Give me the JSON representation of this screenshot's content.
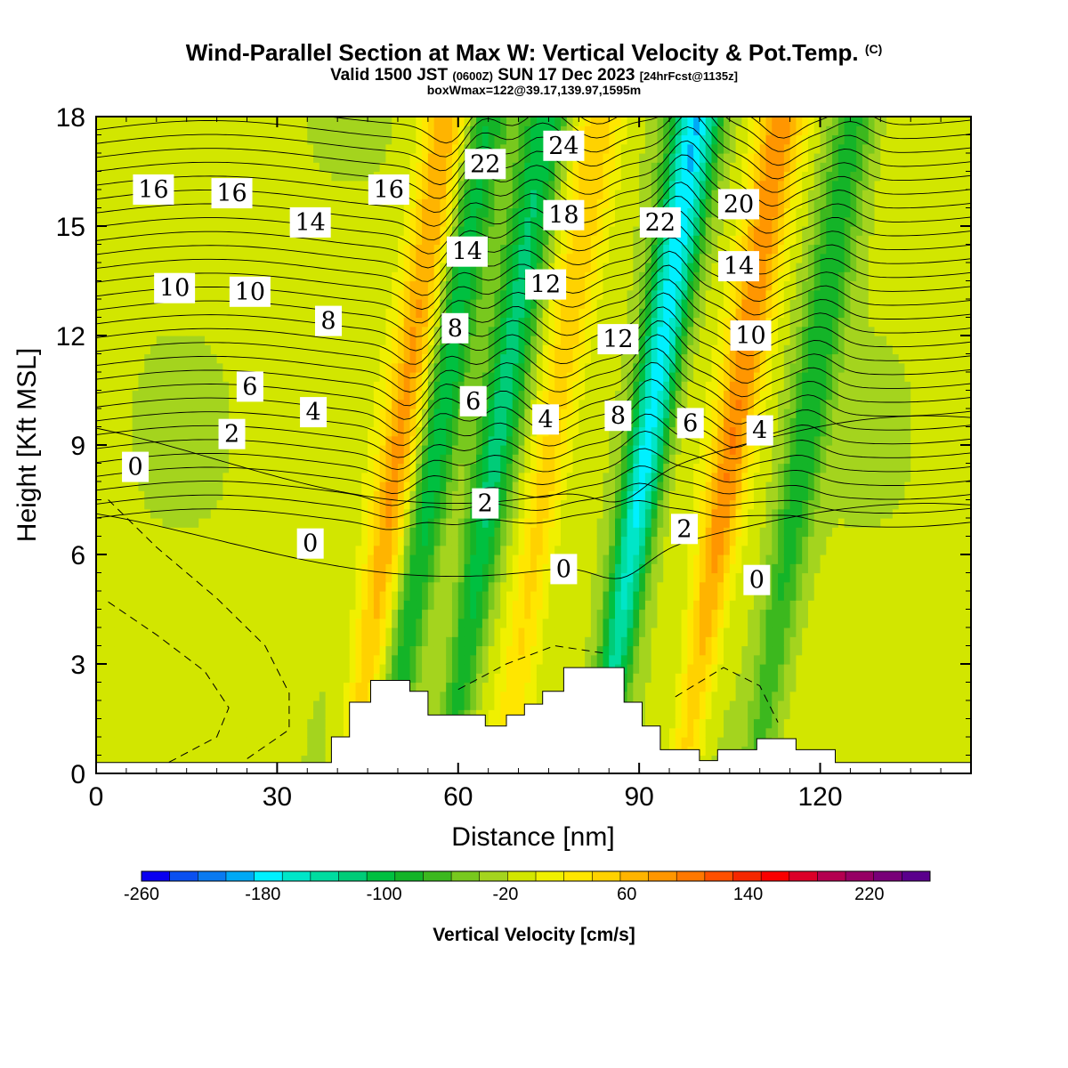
{
  "title": {
    "main": "Wind-Parallel Section at Max W: Vertical Velocity & Pot.Temp.",
    "copyright": "(C)",
    "valid_prefix": "Valid 1500 JST",
    "valid_utc": "(0600Z)",
    "valid_date": "SUN 17 Dec 2023",
    "forecast": "[24hrFcst@1135z]",
    "boxwmax": "boxWmax=122@39.17,139.97,1595m"
  },
  "chart_data": {
    "type": "heatmap",
    "xlabel": "Distance [nm]",
    "ylabel": "Height [Kft MSL]",
    "xlim": [
      0,
      145
    ],
    "ylim": [
      0,
      18
    ],
    "xticks": [
      0,
      30,
      60,
      90,
      120
    ],
    "yticks": [
      0,
      3,
      6,
      9,
      12,
      15,
      18
    ],
    "colorbar": {
      "title": "Vertical Velocity [cm/s]",
      "min": -260,
      "max": 260,
      "step": 20,
      "tick_labels": [
        -260,
        -180,
        -100,
        -20,
        60,
        140,
        220
      ],
      "colors": [
        "#0a00f0",
        "#0a50f0",
        "#0a7af0",
        "#00a9f5",
        "#00f0ff",
        "#00e6c8",
        "#00dca0",
        "#00cc78",
        "#00c040",
        "#14b428",
        "#3cb81e",
        "#78c81e",
        "#a4d41e",
        "#d2e600",
        "#f0f000",
        "#ffe600",
        "#ffd200",
        "#ffb400",
        "#ff9600",
        "#ff7800",
        "#ff5000",
        "#f52800",
        "#fa0000",
        "#dc0028",
        "#b40050",
        "#960064",
        "#780078",
        "#5a008c"
      ]
    },
    "velocity_bands": [
      {
        "x_center": 45,
        "w": 100,
        "label": "updraft"
      },
      {
        "x_center": 51,
        "w": -100,
        "label": "downdraft"
      },
      {
        "x_center": 61,
        "w": -110,
        "label": "downdraft"
      },
      {
        "x_center": 70,
        "w": 70,
        "label": "updraft"
      },
      {
        "x_center": 86,
        "w": -180,
        "label": "downdraft"
      },
      {
        "x_center": 100,
        "w": 110,
        "label": "updraft"
      },
      {
        "x_center": 112,
        "w": -80,
        "label": "downdraft"
      }
    ],
    "terrain_kft": [
      {
        "x": 0,
        "h": 0.3
      },
      {
        "x": 39,
        "h": 0.3
      },
      {
        "x": 39,
        "h": 1.0
      },
      {
        "x": 42,
        "h": 1.0
      },
      {
        "x": 42,
        "h": 1.95
      },
      {
        "x": 45.5,
        "h": 1.95
      },
      {
        "x": 45.5,
        "h": 2.55
      },
      {
        "x": 52,
        "h": 2.55
      },
      {
        "x": 52,
        "h": 2.25
      },
      {
        "x": 55,
        "h": 2.25
      },
      {
        "x": 55,
        "h": 1.6
      },
      {
        "x": 64.5,
        "h": 1.6
      },
      {
        "x": 64.5,
        "h": 1.3
      },
      {
        "x": 68,
        "h": 1.3
      },
      {
        "x": 68,
        "h": 1.6
      },
      {
        "x": 71,
        "h": 1.6
      },
      {
        "x": 71,
        "h": 1.9
      },
      {
        "x": 74,
        "h": 1.9
      },
      {
        "x": 74,
        "h": 2.25
      },
      {
        "x": 77.5,
        "h": 2.25
      },
      {
        "x": 77.5,
        "h": 2.9
      },
      {
        "x": 87.5,
        "h": 2.9
      },
      {
        "x": 87.5,
        "h": 1.95
      },
      {
        "x": 90.5,
        "h": 1.95
      },
      {
        "x": 90.5,
        "h": 1.3
      },
      {
        "x": 93.5,
        "h": 1.3
      },
      {
        "x": 93.5,
        "h": 0.65
      },
      {
        "x": 100,
        "h": 0.65
      },
      {
        "x": 100,
        "h": 0.35
      },
      {
        "x": 103,
        "h": 0.35
      },
      {
        "x": 103,
        "h": 0.65
      },
      {
        "x": 109.5,
        "h": 0.65
      },
      {
        "x": 109.5,
        "h": 0.95
      },
      {
        "x": 116,
        "h": 0.95
      },
      {
        "x": 116,
        "h": 0.65
      },
      {
        "x": 122.5,
        "h": 0.65
      },
      {
        "x": 122.5,
        "h": 0.3
      },
      {
        "x": 145,
        "h": 0.3
      }
    ],
    "contour_labels": [
      {
        "text": "16",
        "x": 9.5,
        "y": 16.0
      },
      {
        "text": "16",
        "x": 22.5,
        "y": 15.9
      },
      {
        "text": "14",
        "x": 35.5,
        "y": 15.1
      },
      {
        "text": "16",
        "x": 48.5,
        "y": 16.0
      },
      {
        "text": "22",
        "x": 64.5,
        "y": 16.7
      },
      {
        "text": "24",
        "x": 77.5,
        "y": 17.2
      },
      {
        "text": "18",
        "x": 77.5,
        "y": 15.3
      },
      {
        "text": "14",
        "x": 61.5,
        "y": 14.3
      },
      {
        "text": "12",
        "x": 74.5,
        "y": 13.4
      },
      {
        "text": "22",
        "x": 93.5,
        "y": 15.1
      },
      {
        "text": "20",
        "x": 106.5,
        "y": 15.6
      },
      {
        "text": "14",
        "x": 106.5,
        "y": 13.9
      },
      {
        "text": "10",
        "x": 13.0,
        "y": 13.3
      },
      {
        "text": "10",
        "x": 25.5,
        "y": 13.2
      },
      {
        "text": "8",
        "x": 38.5,
        "y": 12.4
      },
      {
        "text": "8",
        "x": 59.5,
        "y": 12.2
      },
      {
        "text": "12",
        "x": 86.5,
        "y": 11.9
      },
      {
        "text": "10",
        "x": 108.5,
        "y": 12.0
      },
      {
        "text": "6",
        "x": 25.5,
        "y": 10.6
      },
      {
        "text": "6",
        "x": 62.5,
        "y": 10.2
      },
      {
        "text": "4",
        "x": 36.0,
        "y": 9.9
      },
      {
        "text": "4",
        "x": 74.5,
        "y": 9.7
      },
      {
        "text": "8",
        "x": 86.5,
        "y": 9.8
      },
      {
        "text": "6",
        "x": 98.5,
        "y": 9.6
      },
      {
        "text": "4",
        "x": 110.0,
        "y": 9.4
      },
      {
        "text": "2",
        "x": 22.5,
        "y": 9.3
      },
      {
        "text": "0",
        "x": 6.5,
        "y": 8.4
      },
      {
        "text": "2",
        "x": 64.5,
        "y": 7.4
      },
      {
        "text": "2",
        "x": 97.5,
        "y": 6.7
      },
      {
        "text": "0",
        "x": 35.5,
        "y": 6.3
      },
      {
        "text": "0",
        "x": 77.5,
        "y": 5.6
      },
      {
        "text": "0",
        "x": 109.5,
        "y": 5.3
      }
    ]
  }
}
